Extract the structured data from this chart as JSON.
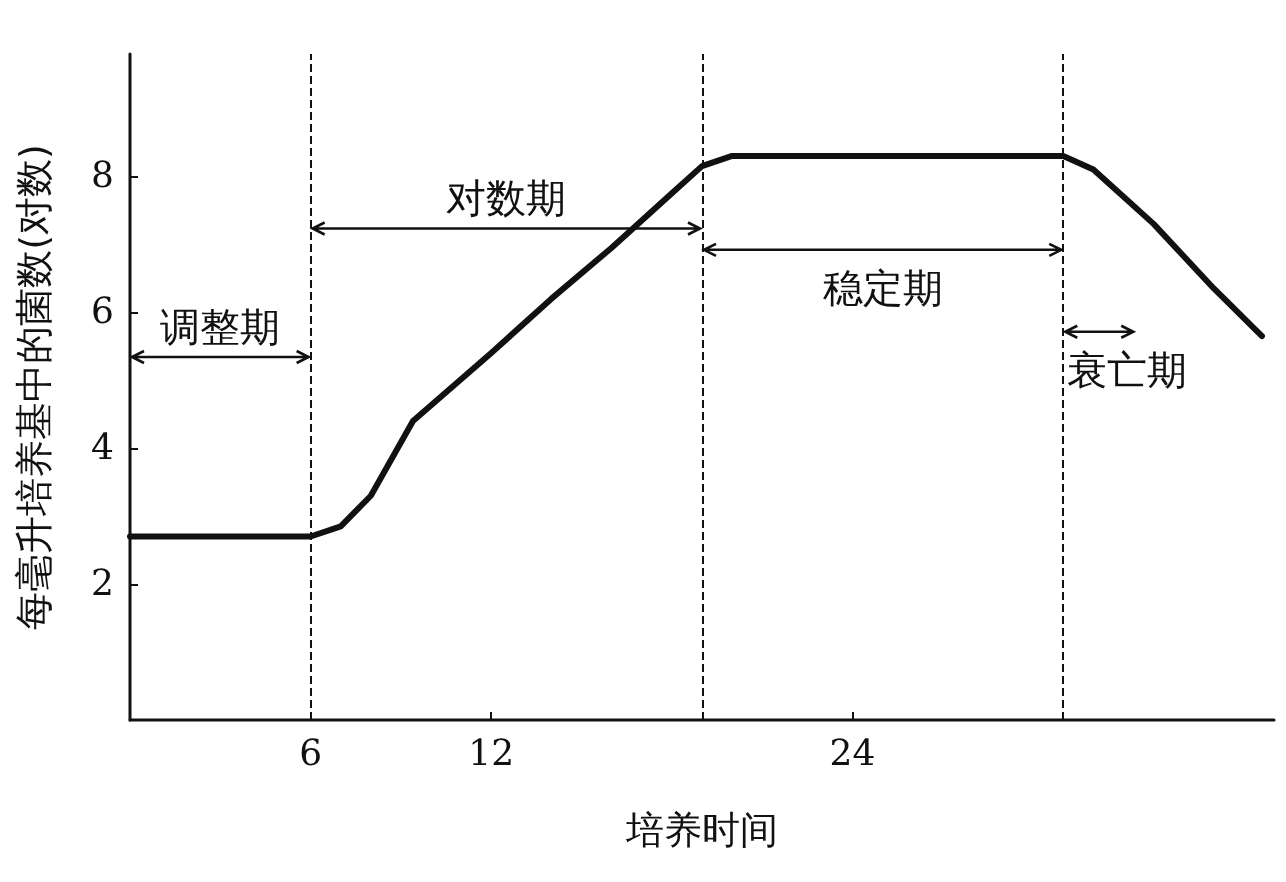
{
  "chart_data": {
    "type": "line",
    "xlabel": "培养时间",
    "ylabel": "每毫升培养基中的菌数(对数)",
    "x": [
      0,
      5,
      6,
      7,
      8,
      9.4,
      12,
      14,
      16,
      18,
      19,
      20,
      31,
      32,
      34,
      36,
      37.6
    ],
    "series": [
      {
        "color": "#111111",
        "values": [
          2.7,
          2.7,
          2.7,
          2.85,
          3.3,
          4.4,
          5.4,
          6.2,
          6.95,
          7.75,
          8.15,
          8.3,
          8.3,
          8.1,
          7.3,
          6.35,
          5.65
        ]
      }
    ],
    "xlim": [
      0,
      38
    ],
    "ylim": [
      0,
      9.8
    ],
    "xticks": [
      6,
      12,
      24
    ],
    "yticks": [
      2,
      4,
      6,
      8
    ],
    "grid": false,
    "marker": "none",
    "line_style": "solid",
    "ref_lines": [
      {
        "axis": "x",
        "value": 6,
        "line_style": "dashed",
        "color": "#111111"
      },
      {
        "axis": "x",
        "value": 19,
        "line_style": "dashed",
        "color": "#111111"
      },
      {
        "axis": "x",
        "value": 31,
        "line_style": "dashed",
        "color": "#111111"
      }
    ],
    "annotations": [
      "调整期",
      "对数期",
      "稳定期",
      "衰亡期"
    ]
  }
}
